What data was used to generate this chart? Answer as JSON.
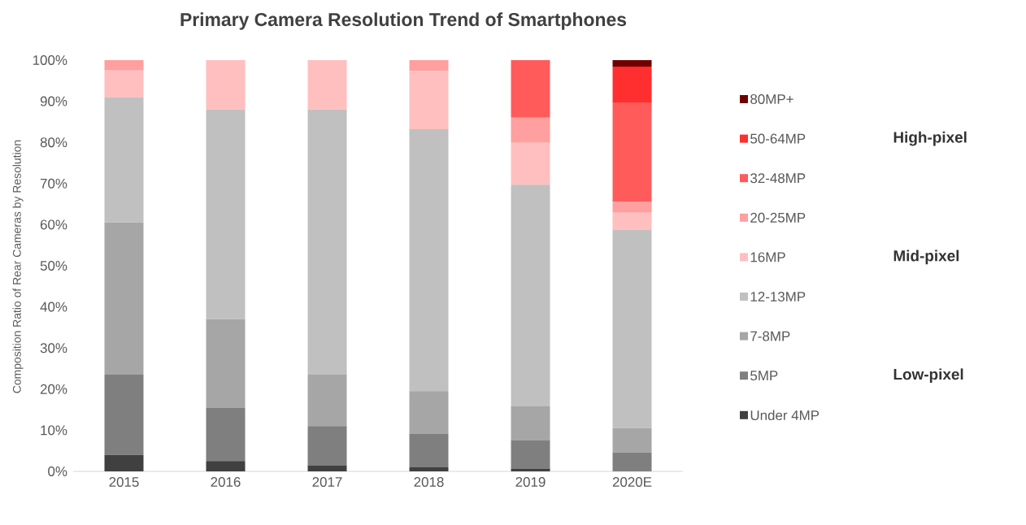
{
  "chart_data": {
    "type": "bar",
    "stacked": true,
    "title": "Primary Camera Resolution Trend of Smartphones",
    "ylabel": "Composition Ratio of Rear Cameras by Resolution",
    "categories": [
      "2015",
      "2016",
      "2017",
      "2018",
      "2019",
      "2020E"
    ],
    "ylim": [
      0,
      100
    ],
    "yticks": [
      {
        "value": 0,
        "label": "0%"
      },
      {
        "value": 10,
        "label": "10%"
      },
      {
        "value": 20,
        "label": "20%"
      },
      {
        "value": 30,
        "label": "30%"
      },
      {
        "value": 40,
        "label": "40%"
      },
      {
        "value": 50,
        "label": "50%"
      },
      {
        "value": 60,
        "label": "60%"
      },
      {
        "value": 70,
        "label": "70%"
      },
      {
        "value": 80,
        "label": "80%"
      },
      {
        "value": 90,
        "label": "90%"
      },
      {
        "value": 100,
        "label": "100%"
      }
    ],
    "legend": "right",
    "series": [
      {
        "name": "Under 4MP",
        "color": "#404040",
        "values": [
          4,
          2.5,
          1.5,
          1,
          0.7,
          0
        ]
      },
      {
        "name": "5MP",
        "color": "#7f7f7f",
        "values": [
          19.5,
          13,
          9.5,
          8.2,
          6.9,
          4.6
        ]
      },
      {
        "name": "7-8MP",
        "color": "#a6a6a6",
        "values": [
          37,
          21.5,
          12.5,
          10.3,
          8.2,
          5.9
        ]
      },
      {
        "name": "12-13MP",
        "color": "#c0c0c0",
        "values": [
          30.5,
          51,
          64.5,
          63.7,
          53.9,
          48.3
        ]
      },
      {
        "name": "16MP",
        "color": "#ffbfbf",
        "values": [
          6.5,
          12,
          12,
          14.2,
          10.2,
          4.1
        ]
      },
      {
        "name": "20-25MP",
        "color": "#ff9f9f",
        "values": [
          2.5,
          0,
          0,
          2.6,
          6.1,
          2.6
        ]
      },
      {
        "name": "32-48MP",
        "color": "#ff5b5b",
        "values": [
          0,
          0,
          0,
          0,
          14,
          24.2
        ]
      },
      {
        "name": "50-64MP",
        "color": "#ff2f2f",
        "values": [
          0,
          0,
          0,
          0,
          0,
          8.7
        ]
      },
      {
        "name": "80MP+",
        "color": "#700000",
        "values": [
          0,
          0,
          0,
          0,
          0,
          1.6
        ]
      }
    ],
    "annotations": [
      "High-pixel",
      "Mid-pixel",
      "Low-pixel"
    ]
  }
}
